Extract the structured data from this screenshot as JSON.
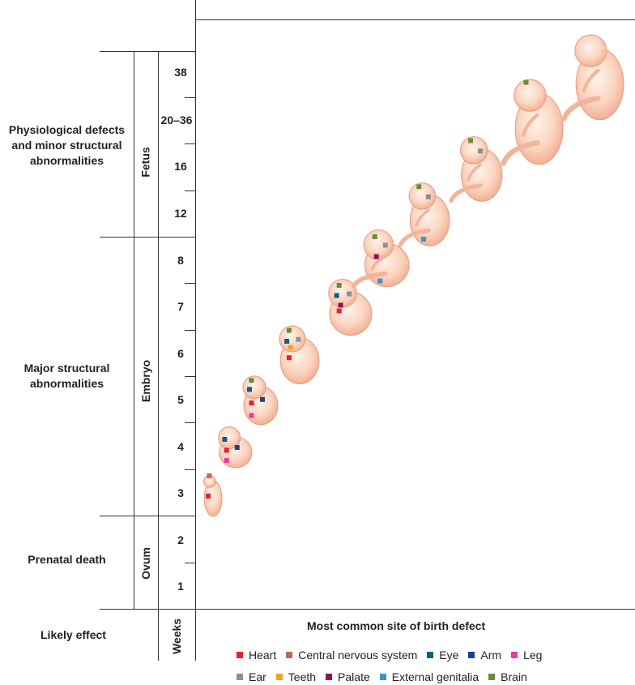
{
  "effects": [
    {
      "lines": [
        "Physiological defects",
        "and minor structural",
        "abnormalities"
      ]
    },
    {
      "lines": [
        "Major structural",
        "abnormalities"
      ]
    },
    {
      "lines": [
        "Prenatal death"
      ]
    }
  ],
  "stages": [
    "Fetus",
    "Embryo",
    "Ovum"
  ],
  "weeks": [
    "38",
    "20–36",
    "16",
    "12",
    "8",
    "7",
    "6",
    "5",
    "4",
    "3",
    "2",
    "1"
  ],
  "footer": {
    "likely_effect": "Likely effect",
    "weeks_label": "Weeks",
    "site_label": "Most common site of birth defect"
  },
  "legend": [
    {
      "label": "Heart",
      "color": "#e8202a"
    },
    {
      "label": "Central nervous system",
      "color": "#c0695a"
    },
    {
      "label": "Eye",
      "color": "#0d5f82"
    },
    {
      "label": "Arm",
      "color": "#1f3f8f"
    },
    {
      "label": "Leg",
      "color": "#e0409a"
    },
    {
      "label": "Ear",
      "color": "#8e8e8e"
    },
    {
      "label": "Teeth",
      "color": "#f5a02a"
    },
    {
      "label": "Palate",
      "color": "#9b0d5a"
    },
    {
      "label": "External genitalia",
      "color": "#3d8fd6"
    },
    {
      "label": "Brain",
      "color": "#6a8c3a"
    }
  ],
  "embryo_markers": [
    {
      "week": "3",
      "sites": [
        "Central nervous system",
        "Heart"
      ]
    },
    {
      "week": "4",
      "sites": [
        "Eye",
        "Heart",
        "Arm",
        "Leg"
      ]
    },
    {
      "week": "5",
      "sites": [
        "Brain",
        "Eye",
        "Heart",
        "Arm",
        "Leg"
      ]
    },
    {
      "week": "6",
      "sites": [
        "Brain",
        "Eye",
        "Ear",
        "Teeth",
        "Heart"
      ]
    },
    {
      "week": "7",
      "sites": [
        "Brain",
        "Eye",
        "Ear",
        "Palate",
        "Heart"
      ]
    },
    {
      "week": "8",
      "sites": [
        "Brain",
        "Ear",
        "Palate",
        "External genitalia"
      ]
    },
    {
      "week": "12",
      "sites": [
        "Brain",
        "Ear",
        "External genitalia"
      ]
    },
    {
      "week": "16",
      "sites": [
        "Brain",
        "Ear"
      ]
    },
    {
      "week": "20–36",
      "sites": [
        "Brain"
      ]
    },
    {
      "week": "38",
      "sites": []
    }
  ]
}
